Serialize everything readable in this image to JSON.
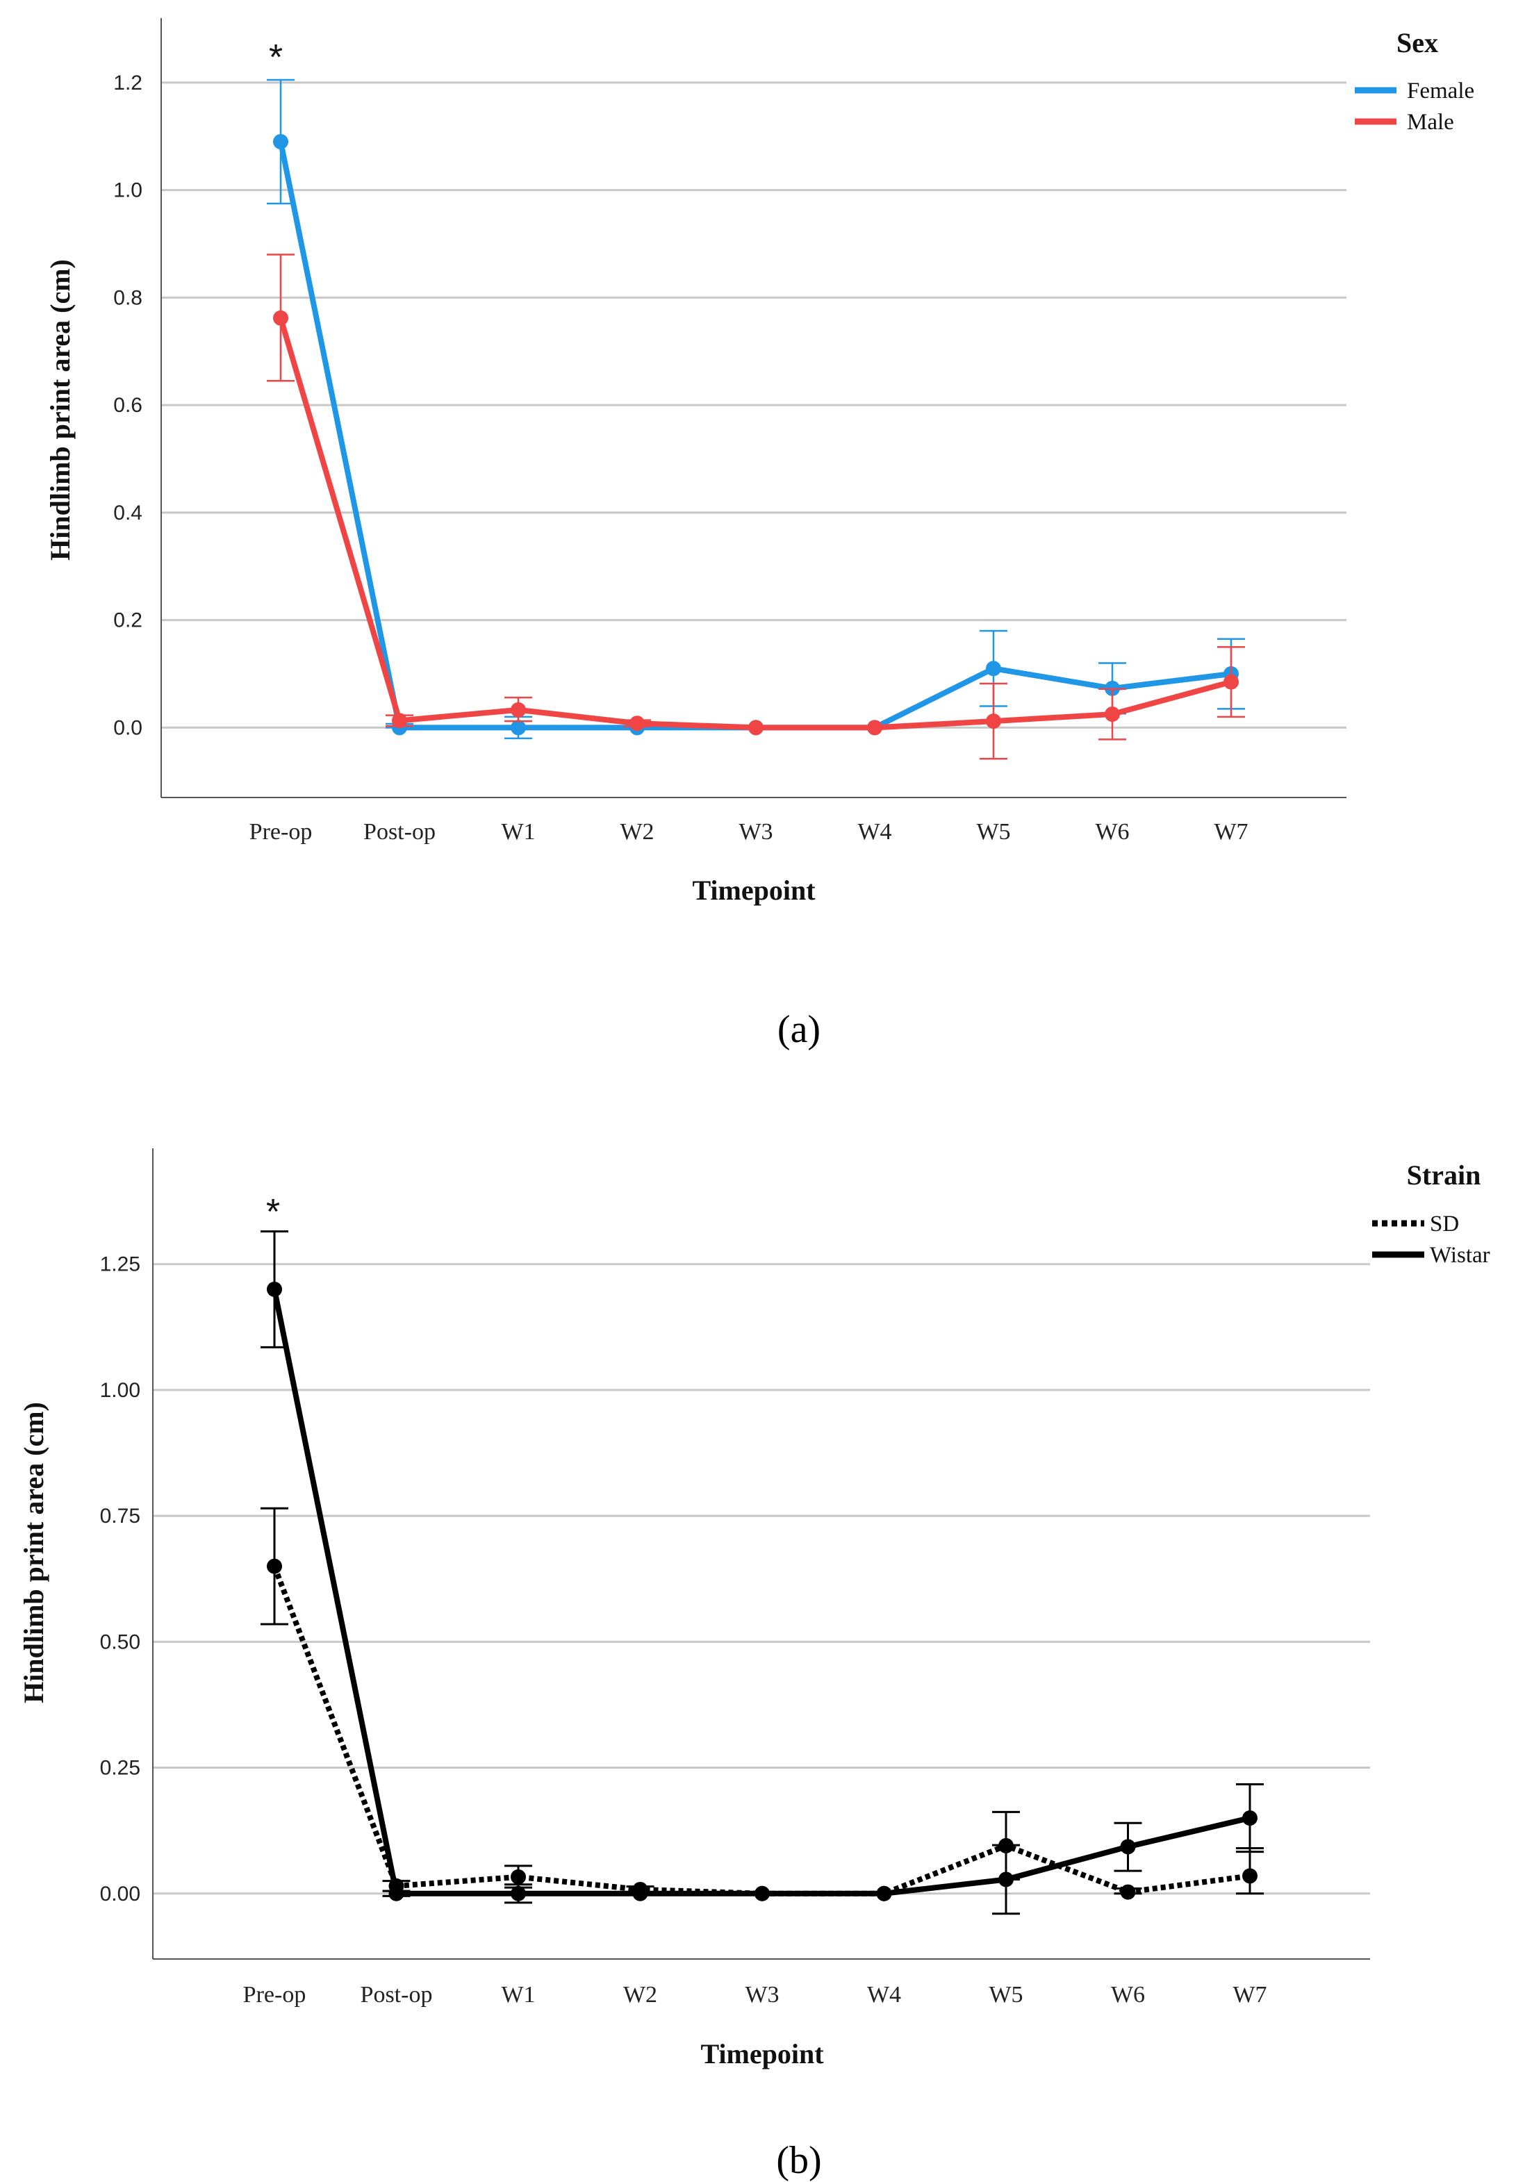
{
  "chart_data": [
    {
      "type": "line",
      "panel_label": "(a)",
      "xlabel": "Timepoint",
      "ylabel": "Hindlimb print area (cm)",
      "categories": [
        "Pre-op",
        "Post-op",
        "W1",
        "W2",
        "W3",
        "W4",
        "W5",
        "W6",
        "W7"
      ],
      "ylim": [
        -0.13,
        1.32
      ],
      "yticks": [
        0.0,
        0.2,
        0.4,
        0.6,
        0.8,
        1.0,
        1.2
      ],
      "ytick_labels": [
        "0.0",
        "0.2",
        "0.4",
        "0.6",
        "0.8",
        "1.0",
        "1.2"
      ],
      "grid": true,
      "legend": {
        "title": "Sex",
        "position": "top-right"
      },
      "annotation": {
        "text": "*",
        "category": "Pre-op"
      },
      "series": [
        {
          "name": "Female",
          "color": "#1f97e6",
          "style": "solid",
          "values": [
            1.09,
            0.0,
            0.0,
            0.0,
            0.0,
            0.0,
            0.11,
            0.073,
            0.1
          ],
          "err_low": [
            0.975,
            0.0,
            -0.02,
            0.0,
            0.0,
            0.0,
            0.04,
            0.026,
            0.035
          ],
          "err_high": [
            1.205,
            0.007,
            0.02,
            0.0,
            0.0,
            0.0,
            0.18,
            0.12,
            0.165
          ]
        },
        {
          "name": "Male",
          "color": "#f04545",
          "style": "solid",
          "values": [
            0.762,
            0.013,
            0.033,
            0.008,
            0.0,
            0.0,
            0.012,
            0.025,
            0.085
          ],
          "err_low": [
            0.645,
            0.003,
            0.012,
            0.002,
            0.0,
            0.0,
            -0.058,
            -0.022,
            0.02
          ],
          "err_high": [
            0.88,
            0.023,
            0.056,
            0.014,
            0.0,
            0.0,
            0.082,
            0.072,
            0.15
          ]
        }
      ]
    },
    {
      "type": "line",
      "panel_label": "(b)",
      "xlabel": "Timepoint",
      "ylabel": "Hindlimb print area (cm)",
      "categories": [
        "Pre-op",
        "Post-op",
        "W1",
        "W2",
        "W3",
        "W4",
        "W5",
        "W6",
        "W7"
      ],
      "ylim": [
        -0.13,
        1.48
      ],
      "yticks": [
        0.0,
        0.25,
        0.5,
        0.75,
        1.0,
        1.25
      ],
      "ytick_labels": [
        "0.00",
        "0.25",
        "0.50",
        "0.75",
        "1.00",
        "1.25"
      ],
      "grid": true,
      "legend": {
        "title": "Strain",
        "position": "top-right"
      },
      "annotation": {
        "text": "*",
        "category": "Pre-op"
      },
      "series": [
        {
          "name": "SD",
          "color": "#000000",
          "style": "dotted",
          "values": [
            0.65,
            0.015,
            0.033,
            0.008,
            0.0,
            0.0,
            0.095,
            0.003,
            0.035
          ],
          "err_low": [
            0.535,
            0.005,
            0.012,
            0.002,
            0.0,
            0.0,
            0.028,
            0.0,
            0.0
          ],
          "err_high": [
            0.765,
            0.025,
            0.055,
            0.014,
            0.0,
            0.0,
            0.162,
            0.01,
            0.09
          ]
        },
        {
          "name": "Wistar",
          "color": "#000000",
          "style": "solid",
          "values": [
            1.2,
            0.0,
            0.0,
            0.0,
            0.0,
            0.0,
            0.028,
            0.093,
            0.15
          ],
          "err_low": [
            1.085,
            -0.005,
            -0.018,
            0.0,
            0.0,
            0.0,
            -0.04,
            0.045,
            0.083
          ],
          "err_high": [
            1.315,
            0.005,
            0.018,
            0.0,
            0.0,
            0.0,
            0.096,
            0.14,
            0.217
          ]
        }
      ]
    }
  ]
}
